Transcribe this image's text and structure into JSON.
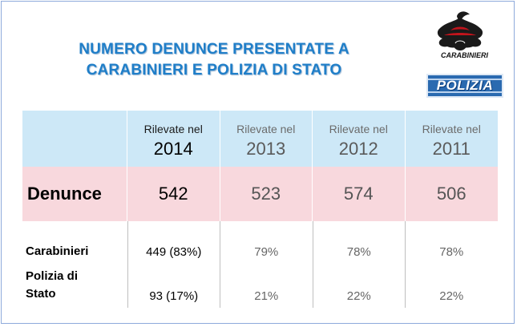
{
  "title": {
    "line1": "NUMERO DENUNCE PRESENTATE A",
    "line2": "CARABINIERI  E POLIZIA  DI STATO"
  },
  "logos": {
    "carabinieri_text": "CARABINIERI",
    "polizia_text": "POLIZIA"
  },
  "table": {
    "columns": [
      {
        "label": "Rilevate nel",
        "year": "2014"
      },
      {
        "label": "Rilevate nel",
        "year": "2013"
      },
      {
        "label": "Rilevate nel",
        "year": "2012"
      },
      {
        "label": "Rilevate nel",
        "year": "2011"
      }
    ],
    "denunce": {
      "label": "Denunce",
      "values": [
        "542",
        "523",
        "574",
        "506"
      ]
    },
    "carabinieri": {
      "label": "Carabinieri",
      "values": [
        "449 (83%)",
        "79%",
        "78%",
        "78%"
      ]
    },
    "polizia": {
      "label_line1": "Polizia di",
      "label_line2": "Stato",
      "values": [
        "93 (17%)",
        "21%",
        "22%",
        "22%"
      ]
    }
  },
  "colors": {
    "title": "#1f7ec8",
    "header_band": "#cde8f7",
    "denunce_band": "#f8d8dd",
    "polizia_logo": "#2a6ab0"
  }
}
